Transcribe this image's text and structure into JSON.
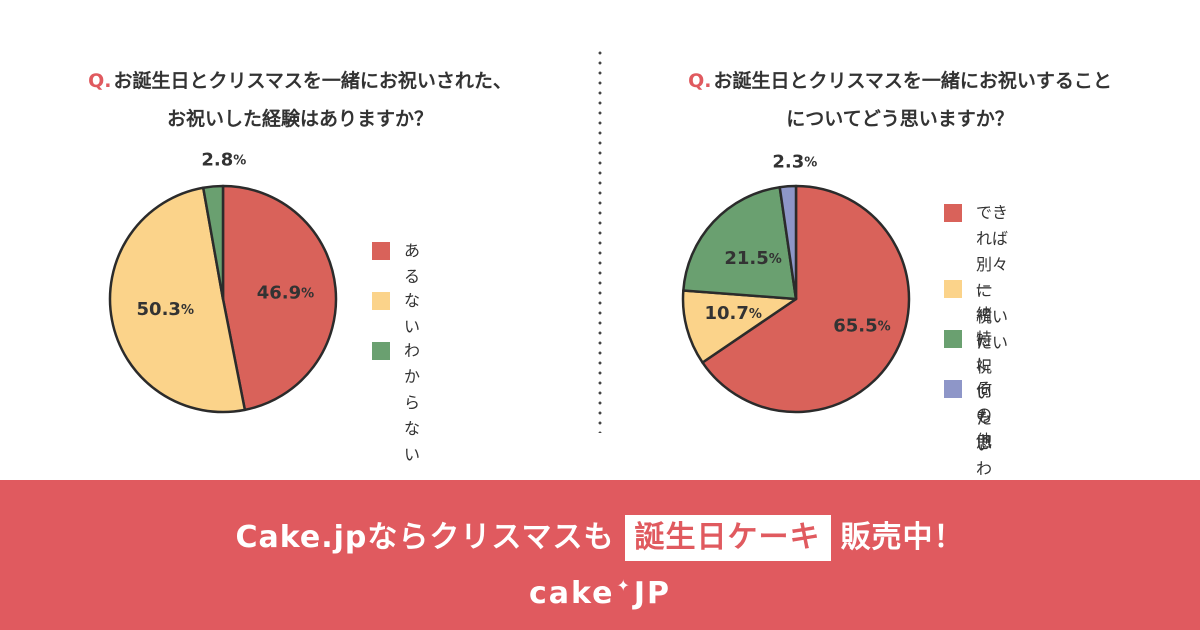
{
  "left": {
    "question_prefix": "Q.",
    "question_line1": "お誕生日とクリスマスを一緒にお祝いされた、",
    "question_line2": "お祝いした経験はありますか？",
    "legend": [
      {
        "label": "ある",
        "color": "#d9625a"
      },
      {
        "label": "ない",
        "color": "#fbd38a"
      },
      {
        "label": "わからない",
        "color": "#6aa070"
      }
    ]
  },
  "right": {
    "question_prefix": "Q.",
    "question_line1": "お誕生日とクリスマスを一緒にお祝いすること",
    "question_line2": "についてどう思いますか？",
    "legend": [
      {
        "label": "できれば別々に\n祝いたい",
        "color": "#d9625a"
      },
      {
        "label": "一緒に祝いたい",
        "color": "#fbd38a"
      },
      {
        "label": "特に何も思わない",
        "color": "#6aa070"
      },
      {
        "label": "その他",
        "color": "#8e96c8"
      }
    ]
  },
  "chart_data": [
    {
      "type": "pie",
      "title": "お誕生日とクリスマスを一緒にお祝いされた、お祝いした経験はありますか？",
      "categories": [
        "ある",
        "ない",
        "わからない"
      ],
      "values": [
        46.9,
        50.3,
        2.8
      ],
      "value_labels": [
        "46.9",
        "50.3",
        "2.8"
      ],
      "unit": "%",
      "colors": [
        "#d9625a",
        "#fbd38a",
        "#6aa070"
      ],
      "legend": "right"
    },
    {
      "type": "pie",
      "title": "お誕生日とクリスマスを一緒にお祝いすることについてどう思いますか？",
      "categories": [
        "できれば別々に祝いたい",
        "一緒に祝いたい",
        "特に何も思わない",
        "その他"
      ],
      "values": [
        65.5,
        10.7,
        21.5,
        2.3
      ],
      "value_labels": [
        "65.5",
        "10.7",
        "21.5",
        "2.3"
      ],
      "unit": "%",
      "colors": [
        "#d9625a",
        "#fbd38a",
        "#6aa070",
        "#8e96c8"
      ],
      "legend": "right"
    }
  ],
  "banner": {
    "text_before": "Cake.jpならクリスマスも",
    "highlight": "誕生日ケーキ",
    "text_after": "販売中！",
    "brand_left": "cake",
    "brand_star": "✦",
    "brand_right": "JP",
    "color": "#e05a5f"
  }
}
